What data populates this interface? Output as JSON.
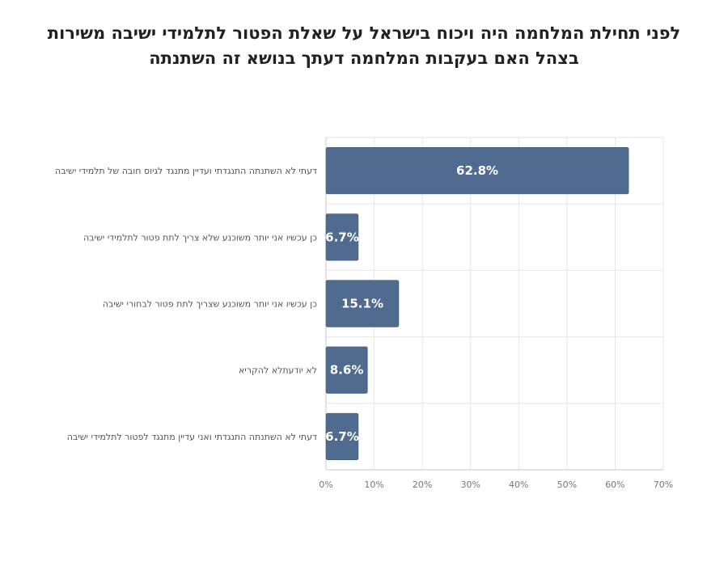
{
  "title_lines": [
    "לפני תחילת המלחמה היה ויכוח בישראל על שאלת הפטור לתלמידי ישיבה משירות",
    "בצהל האם בעקבות המלחמה דעתך בנושא זה השתנתה"
  ],
  "chart_data": {
    "type": "bar",
    "orientation": "horizontal",
    "categories": [
      "דעתי לא השתנתה  התנגדתי ועדיין מתנגד לגיוס חובה של תלמידי ישיבה",
      "כן  עכשיו אני יותר משוכנע שלא צריך לתת פטור לתלמידי ישיבה",
      "כן  עכשיו אני יותר משוכנע שצריך לתת פטור לבחורי ישיבה",
      "לא יודעתלא להקריא",
      "דעתי לא השתנתה  התנגדתי ואני עדיין מתנגד לפטור לתלמידי ישיבה"
    ],
    "values": [
      62.8,
      6.7,
      15.1,
      8.6,
      6.7
    ],
    "value_labels": [
      "62.8%",
      "6.7%",
      "15.1%",
      "8.6%",
      "6.7%"
    ],
    "xlim": [
      0,
      70
    ],
    "x_ticks": [
      "0%",
      "10%",
      "20%",
      "30%",
      "40%",
      "50%",
      "60%",
      "70%"
    ],
    "grid": true,
    "bar_color": "#4f6b8f"
  }
}
